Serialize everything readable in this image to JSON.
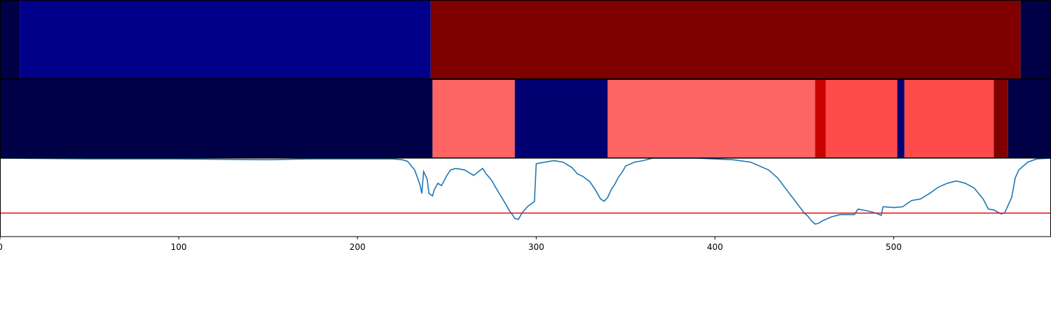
{
  "chart_data": {
    "type": "heatmap",
    "title": "",
    "xlabel": "",
    "ylabel": "",
    "xlim": [
      0,
      588
    ],
    "x_ticks": [
      {
        "value": 0,
        "label": "0"
      },
      {
        "value": 100,
        "label": "100"
      },
      {
        "value": 200,
        "label": "200"
      },
      {
        "value": 300,
        "label": "300"
      },
      {
        "value": 400,
        "label": "400"
      },
      {
        "value": 500,
        "label": "500"
      }
    ],
    "grid": false,
    "panels": [
      {
        "type": "heatmap",
        "segments": [
          {
            "x0": 0,
            "x1": 11,
            "color": "#000046"
          },
          {
            "x0": 11,
            "x1": 241,
            "color": "#00008b"
          },
          {
            "x0": 241,
            "x1": 571,
            "color": "#800000"
          },
          {
            "x0": 571,
            "x1": 588,
            "color": "#000046"
          }
        ]
      },
      {
        "type": "heatmap",
        "segments": [
          {
            "x0": 0,
            "x1": 242,
            "color": "#000046"
          },
          {
            "x0": 242,
            "x1": 288,
            "color": "#ff6464"
          },
          {
            "x0": 288,
            "x1": 340,
            "color": "#000070"
          },
          {
            "x0": 340,
            "x1": 456,
            "color": "#ff6464"
          },
          {
            "x0": 456,
            "x1": 462,
            "color": "#c80000"
          },
          {
            "x0": 462,
            "x1": 502,
            "color": "#ff4a4a"
          },
          {
            "x0": 502,
            "x1": 506,
            "color": "#000070"
          },
          {
            "x0": 506,
            "x1": 556,
            "color": "#ff4a4a"
          },
          {
            "x0": 556,
            "x1": 564,
            "color": "#800000"
          },
          {
            "x0": 564,
            "x1": 588,
            "color": "#000046"
          }
        ]
      },
      {
        "type": "line",
        "ylim": [
          0,
          1
        ],
        "threshold": 0.3,
        "threshold_color": "#e41a1c",
        "line_color": "#1f77b4",
        "x": [
          0,
          50,
          100,
          150,
          172,
          200,
          220,
          225,
          228,
          232,
          235,
          236,
          237,
          239,
          240,
          242,
          243,
          245,
          247,
          250,
          252,
          255,
          260,
          265,
          270,
          272,
          275,
          278,
          282,
          285,
          287,
          288,
          290,
          292,
          295,
          298,
          299,
          300,
          305,
          310,
          315,
          320,
          323,
          326,
          330,
          333,
          336,
          338,
          340,
          342,
          344,
          346,
          348,
          350,
          355,
          360,
          365,
          370,
          380,
          390,
          400,
          410,
          420,
          430,
          435,
          440,
          445,
          450,
          452,
          454,
          456,
          458,
          460,
          462,
          465,
          470,
          475,
          478,
          480,
          485,
          490,
          493,
          494,
          495,
          500,
          505,
          510,
          515,
          520,
          525,
          530,
          535,
          540,
          545,
          550,
          553,
          556,
          560,
          562,
          564,
          566,
          568,
          570,
          575,
          580,
          588
        ],
        "y": [
          1.0,
          0.99,
          0.99,
          0.98,
          0.99,
          0.99,
          0.99,
          0.98,
          0.96,
          0.85,
          0.66,
          0.55,
          0.83,
          0.73,
          0.55,
          0.52,
          0.6,
          0.68,
          0.65,
          0.78,
          0.85,
          0.87,
          0.85,
          0.78,
          0.87,
          0.8,
          0.72,
          0.6,
          0.45,
          0.33,
          0.27,
          0.23,
          0.22,
          0.3,
          0.38,
          0.43,
          0.45,
          0.93,
          0.95,
          0.97,
          0.95,
          0.88,
          0.8,
          0.77,
          0.7,
          0.6,
          0.48,
          0.45,
          0.5,
          0.6,
          0.67,
          0.76,
          0.82,
          0.9,
          0.95,
          0.97,
          1.0,
          1.0,
          1.0,
          1.0,
          0.99,
          0.98,
          0.95,
          0.85,
          0.75,
          0.6,
          0.45,
          0.3,
          0.26,
          0.2,
          0.16,
          0.17,
          0.2,
          0.22,
          0.25,
          0.28,
          0.28,
          0.28,
          0.35,
          0.33,
          0.3,
          0.27,
          0.38,
          0.38,
          0.37,
          0.38,
          0.46,
          0.48,
          0.55,
          0.63,
          0.68,
          0.71,
          0.68,
          0.62,
          0.48,
          0.35,
          0.34,
          0.29,
          0.3,
          0.4,
          0.5,
          0.75,
          0.85,
          0.95,
          0.99,
          1.0
        ]
      }
    ]
  }
}
